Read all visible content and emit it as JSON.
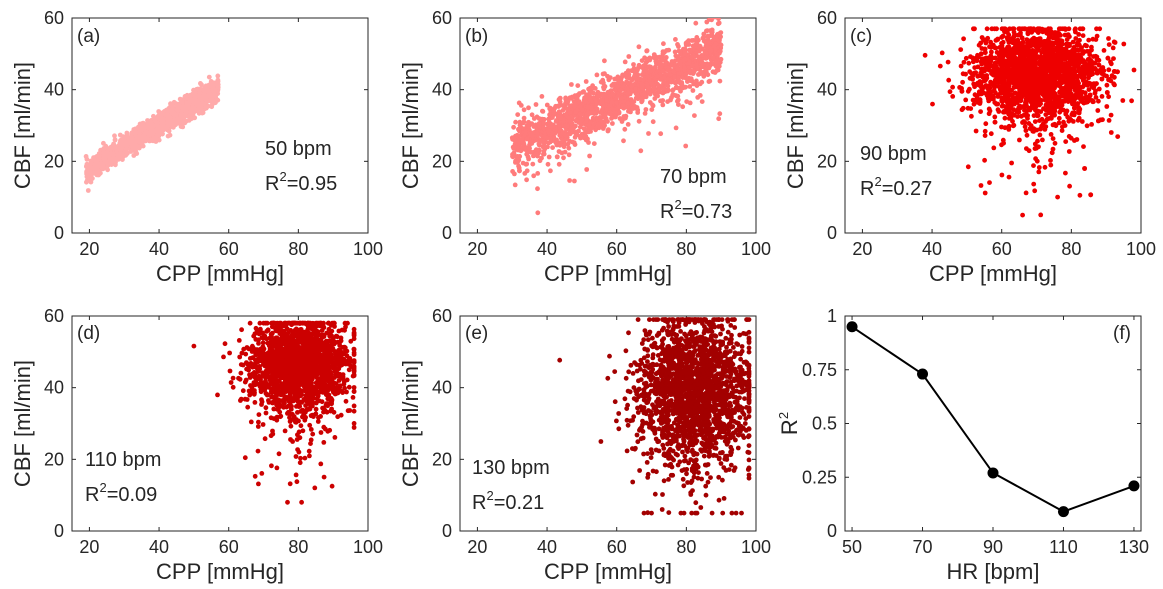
{
  "chart_data": [
    {
      "type": "scatter",
      "panel_label": "(a)",
      "xlabel": "CPP [mmHg]",
      "ylabel": "CBF [ml/min]",
      "xlim": [
        15,
        100
      ],
      "ylim": [
        0,
        60
      ],
      "xticks": [
        20,
        40,
        60,
        80,
        100
      ],
      "yticks": [
        0,
        20,
        40,
        60
      ],
      "annotation": {
        "hr": "50 bpm",
        "r2_prefix": "R",
        "r2_sup": "2",
        "r2_value": "=0.95"
      },
      "color": "#ffaaaa",
      "point_cloud": {
        "n": 1400,
        "x_range": [
          19,
          57
        ],
        "y_at_x_min": 17,
        "y_at_x_max": 40.5,
        "band": 1.6
      }
    },
    {
      "type": "scatter",
      "panel_label": "(b)",
      "xlabel": "CPP [mmHg]",
      "ylabel": "CBF [ml/min]",
      "xlim": [
        15,
        100
      ],
      "ylim": [
        0,
        60
      ],
      "xticks": [
        20,
        40,
        60,
        80,
        100
      ],
      "yticks": [
        0,
        20,
        40,
        60
      ],
      "annotation": {
        "hr": "70 bpm",
        "r2_prefix": "R",
        "r2_sup": "2",
        "r2_value": "=0.73"
      },
      "color": "#ff7b7b",
      "point_cloud": {
        "n": 1600,
        "x_range": [
          30,
          90
        ],
        "y_at_x_min": 24,
        "y_at_x_max": 52,
        "band": 3.5,
        "outlier_share": 0.08
      }
    },
    {
      "type": "scatter",
      "panel_label": "(c)",
      "xlabel": "CPP [mmHg]",
      "ylabel": "CBF [ml/min]",
      "xlim": [
        15,
        100
      ],
      "ylim": [
        0,
        60
      ],
      "xticks": [
        20,
        40,
        60,
        80,
        100
      ],
      "yticks": [
        0,
        20,
        40,
        60
      ],
      "annotation": {
        "hr": "90 bpm",
        "r2_prefix": "R",
        "r2_sup": "2",
        "r2_value": "=0.27"
      },
      "color": "#ee0000",
      "point_cloud": {
        "n": 2200,
        "center": [
          70,
          45
        ],
        "spread": [
          9,
          6
        ],
        "x_range": [
          38,
          98
        ],
        "y_range": [
          5,
          57
        ]
      }
    },
    {
      "type": "scatter",
      "panel_label": "(d)",
      "xlabel": "CPP [mmHg]",
      "ylabel": "CBF [ml/min]",
      "xlim": [
        15,
        100
      ],
      "ylim": [
        0,
        60
      ],
      "xticks": [
        20,
        40,
        60,
        80,
        100
      ],
      "yticks": [
        0,
        20,
        40,
        60
      ],
      "annotation": {
        "hr": "110 bpm",
        "r2_prefix": "R",
        "r2_sup": "2",
        "r2_value": "=0.09"
      },
      "color": "#cc0000",
      "point_cloud": {
        "n": 1900,
        "center": [
          80,
          47
        ],
        "spread": [
          7,
          6
        ],
        "x_range": [
          50,
          96
        ],
        "y_range": [
          8,
          58
        ]
      }
    },
    {
      "type": "scatter",
      "panel_label": "(e)",
      "xlabel": "CPP [mmHg]",
      "ylabel": "CBF [ml/min]",
      "xlim": [
        15,
        100
      ],
      "ylim": [
        0,
        60
      ],
      "xticks": [
        20,
        40,
        60,
        80,
        100
      ],
      "yticks": [
        0,
        20,
        40,
        60
      ],
      "annotation": {
        "hr": "130 bpm",
        "r2_prefix": "R",
        "r2_sup": "2",
        "r2_value": "=0.21"
      },
      "color": "#a30000",
      "point_cloud": {
        "n": 2000,
        "center": [
          82,
          40
        ],
        "spread": [
          8,
          10
        ],
        "x_range": [
          42,
          98
        ],
        "y_range": [
          5,
          59
        ]
      }
    },
    {
      "type": "line",
      "panel_label": "(f)",
      "xlabel": "HR [bpm]",
      "ylabel_prefix": "R",
      "ylabel_sup": "2",
      "xlim": [
        48,
        132
      ],
      "ylim": [
        0,
        1
      ],
      "xticks": [
        50,
        70,
        90,
        110,
        130
      ],
      "yticks": [
        0,
        0.25,
        0.5,
        0.75,
        1
      ],
      "ytick_labels": [
        "0",
        "0.25",
        "0.5",
        "0.75",
        "1"
      ],
      "x": [
        50,
        70,
        90,
        110,
        130
      ],
      "y": [
        0.95,
        0.73,
        0.27,
        0.09,
        0.21
      ],
      "color": "#000000"
    }
  ]
}
